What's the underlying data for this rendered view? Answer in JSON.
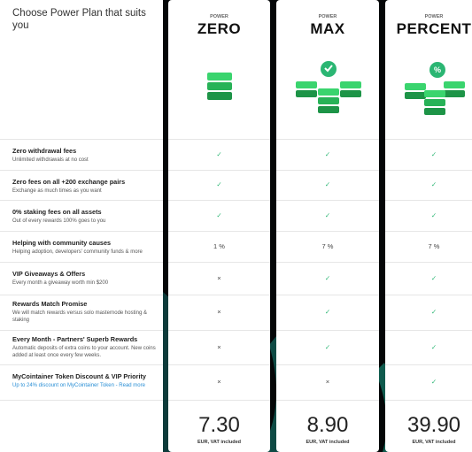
{
  "header": {
    "title": "Choose Power Plan that suits you"
  },
  "plans": [
    {
      "label": "POWER",
      "name": "ZERO",
      "price": "7.30",
      "price_note": "EUR, VAT included"
    },
    {
      "label": "POWER",
      "name": "MAX",
      "price": "8.90",
      "price_note": "EUR, VAT included"
    },
    {
      "label": "POWER",
      "name": "PERCENT",
      "price": "39.90",
      "price_note": "EUR, VAT included"
    }
  ],
  "features": [
    {
      "title": "Zero withdrawal fees",
      "subtitle": "Unlimited withdrawals at no cost",
      "values": [
        "✓",
        "✓",
        "✓"
      ]
    },
    {
      "title": "Zero fees on all +200 exchange pairs",
      "subtitle": "Exchange as much times as you want",
      "values": [
        "✓",
        "✓",
        "✓"
      ]
    },
    {
      "title": "0% staking fees on all assets",
      "subtitle": "Out of every rewards 100% goes to you",
      "values": [
        "✓",
        "✓",
        "✓"
      ]
    },
    {
      "title": "Helping with community causes",
      "subtitle": "Helping adoption, developers' community funds & more",
      "values": [
        "1 %",
        "7 %",
        "7 %"
      ]
    },
    {
      "title": "VIP Giveaways & Offers",
      "subtitle": "Every month a giveaway worth min $200",
      "values": [
        "×",
        "✓",
        "✓"
      ]
    },
    {
      "title": "Rewards Match Promise",
      "subtitle": "We will match rewards versus solo masternode hosting & staking",
      "values": [
        "×",
        "✓",
        "✓"
      ]
    },
    {
      "title": "Every Month - Partners' Superb Rewards",
      "subtitle": "Automatic deposits of extra coins to your account. New coins added at least once every few weeks.",
      "values": [
        "×",
        "✓",
        "✓"
      ]
    },
    {
      "title": "MyCointainer Token Discount & VIP Priority",
      "subtitle": "Up to 24% discount on MyCointainer Token - Read more",
      "values": [
        "×",
        "×",
        "✓"
      ]
    }
  ]
}
